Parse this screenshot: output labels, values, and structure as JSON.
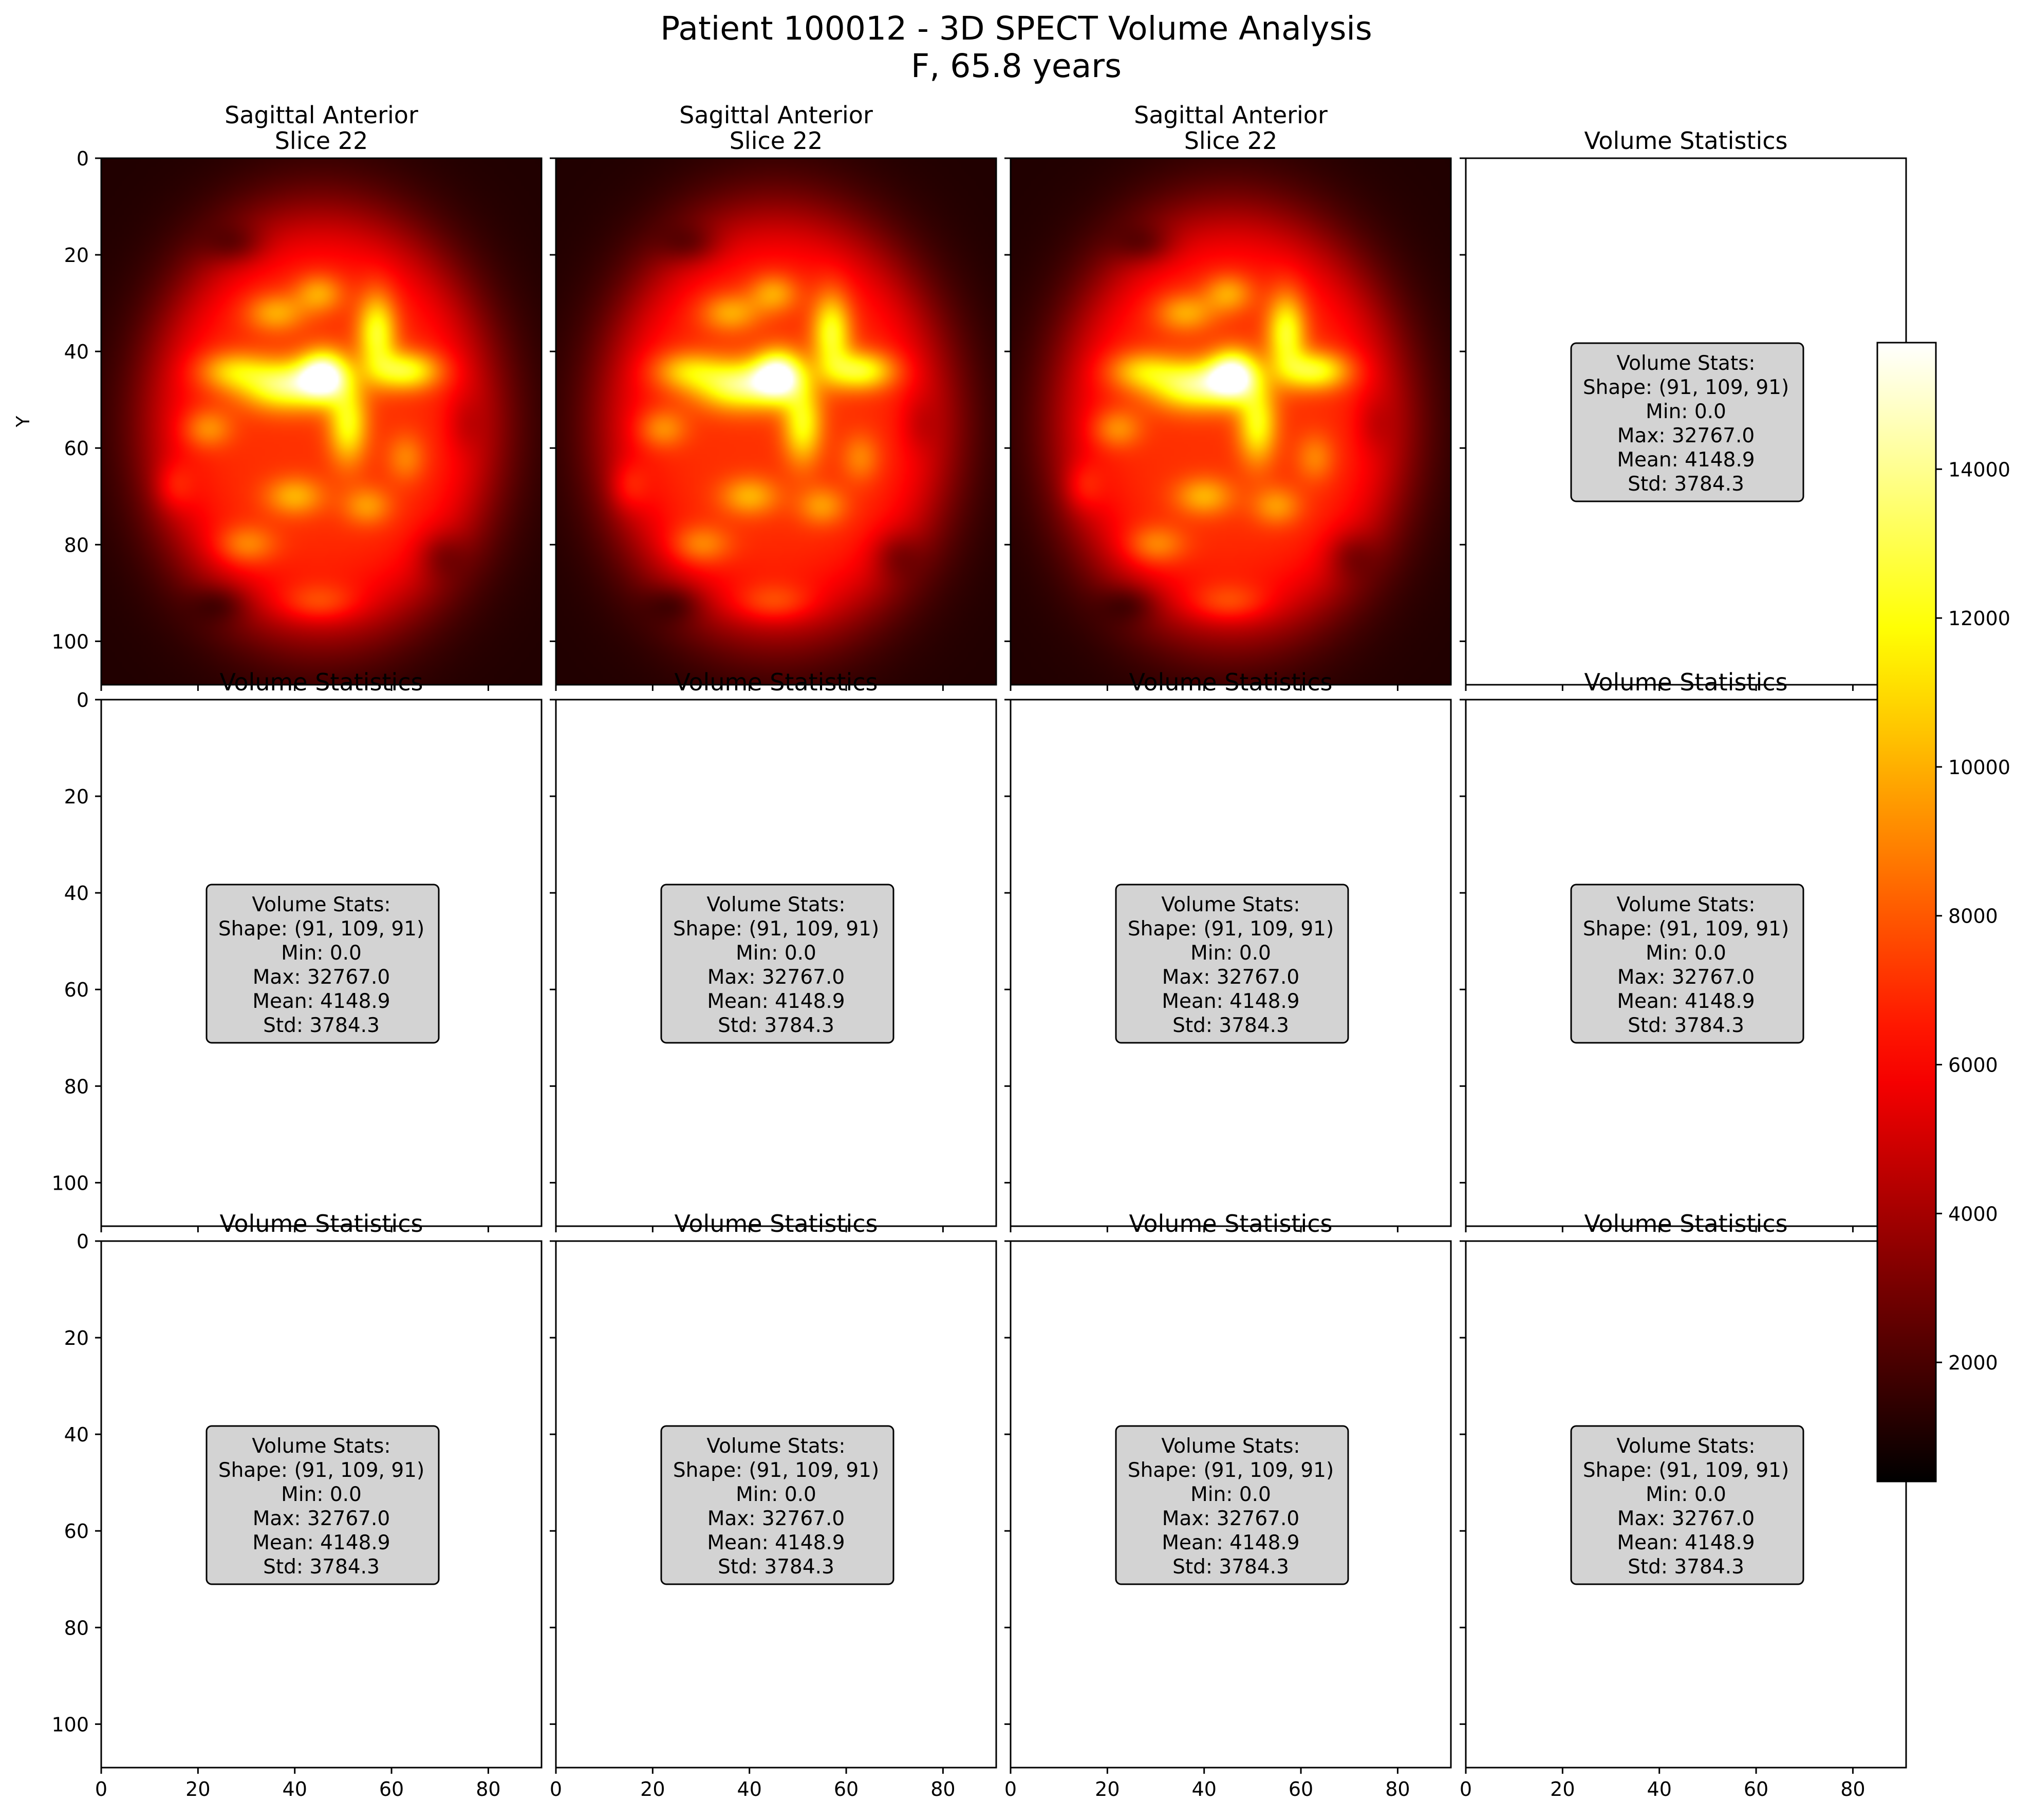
{
  "figure": {
    "title_line1": "Patient 100012 - 3D SPECT Volume Analysis",
    "title_line2": "F, 65.8 years"
  },
  "chart_data": {
    "type": "heatmap",
    "layout": "3 rows x 4 columns",
    "x_ticks": [
      0,
      20,
      40,
      60,
      80
    ],
    "y_ticks": [
      0,
      20,
      40,
      60,
      80,
      100
    ],
    "xlim": [
      0,
      91
    ],
    "ylim": [
      109,
      0
    ],
    "ylabel": "Y",
    "colormap": "hot",
    "colorbar": {
      "range": [
        400,
        15700
      ],
      "ticks": [
        2000,
        4000,
        6000,
        8000,
        10000,
        12000,
        14000
      ]
    },
    "stats_box": {
      "heading": "Volume Stats:",
      "shape": "Shape: (91, 109, 91)",
      "min": "Min: 0.0",
      "max": "Max: 32767.0",
      "mean": "Mean: 4148.9",
      "std": "Std: 3784.3"
    },
    "panels": [
      {
        "title": [
          "Sagittal Anterior",
          "Slice 22"
        ],
        "kind": "image"
      },
      {
        "title": [
          "Sagittal Anterior",
          "Slice 22"
        ],
        "kind": "image"
      },
      {
        "title": [
          "Sagittal Anterior",
          "Slice 22"
        ],
        "kind": "image"
      },
      {
        "title": [
          "Volume Statistics"
        ],
        "kind": "stats"
      },
      {
        "title": [
          "Volume Statistics"
        ],
        "kind": "stats"
      },
      {
        "title": [
          "Volume Statistics"
        ],
        "kind": "stats"
      },
      {
        "title": [
          "Volume Statistics"
        ],
        "kind": "stats"
      },
      {
        "title": [
          "Volume Statistics"
        ],
        "kind": "stats"
      },
      {
        "title": [
          "Volume Statistics"
        ],
        "kind": "stats"
      },
      {
        "title": [
          "Volume Statistics"
        ],
        "kind": "stats"
      },
      {
        "title": [
          "Volume Statistics"
        ],
        "kind": "stats"
      },
      {
        "title": [
          "Volume Statistics"
        ],
        "kind": "stats"
      }
    ],
    "blobs": [
      {
        "x": 45.5,
        "y": 55.0,
        "rx": 40,
        "ry": 49,
        "v": 6000,
        "shape": "head"
      },
      {
        "x": 46,
        "y": 45,
        "rx": 5,
        "ry": 5,
        "v": 8500
      },
      {
        "x": 38,
        "y": 47,
        "rx": 9,
        "ry": 5,
        "v": 6500
      },
      {
        "x": 57,
        "y": 36,
        "rx": 4,
        "ry": 8,
        "v": 5500
      },
      {
        "x": 63,
        "y": 44,
        "rx": 7,
        "ry": 4,
        "v": 5500
      },
      {
        "x": 51,
        "y": 55,
        "rx": 4,
        "ry": 8,
        "v": 5000
      },
      {
        "x": 27,
        "y": 44,
        "rx": 7,
        "ry": 4,
        "v": 3500
      },
      {
        "x": 36,
        "y": 32,
        "rx": 6,
        "ry": 4,
        "v": 3000
      },
      {
        "x": 45,
        "y": 28,
        "rx": 5,
        "ry": 4,
        "v": 3000
      },
      {
        "x": 22,
        "y": 56,
        "rx": 5,
        "ry": 4,
        "v": 2500
      },
      {
        "x": 40,
        "y": 70,
        "rx": 6,
        "ry": 4,
        "v": 3000
      },
      {
        "x": 55,
        "y": 72,
        "rx": 5,
        "ry": 4,
        "v": 2500
      },
      {
        "x": 30,
        "y": 80,
        "rx": 6,
        "ry": 4,
        "v": 2500
      },
      {
        "x": 63,
        "y": 62,
        "rx": 4,
        "ry": 5,
        "v": 2000
      },
      {
        "x": 15,
        "y": 68,
        "rx": 4,
        "ry": 5,
        "v": 1500
      },
      {
        "x": 45,
        "y": 92,
        "rx": 8,
        "ry": 4,
        "v": 2000
      },
      {
        "x": 28,
        "y": 18,
        "rx": 6,
        "ry": 4,
        "v": -1500
      },
      {
        "x": 25,
        "y": 92,
        "rx": 6,
        "ry": 4,
        "v": -1500
      },
      {
        "x": 70,
        "y": 82,
        "rx": 5,
        "ry": 5,
        "v": -1500
      },
      {
        "x": 75,
        "y": 55,
        "rx": 4,
        "ry": 6,
        "v": -1000
      }
    ]
  }
}
